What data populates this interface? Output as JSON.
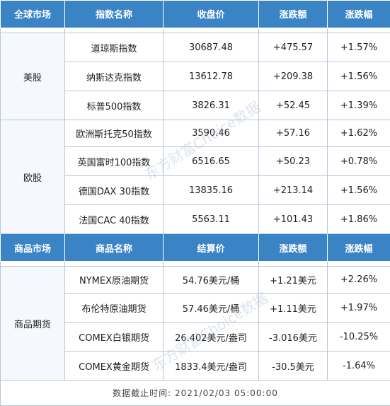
{
  "header1": [
    "全球市场",
    "指数名称",
    "收盘价",
    "涨跌额",
    "涨跌幅"
  ],
  "groups": [
    {
      "market": "美股",
      "rows": [
        [
          "道琼斯指数",
          "30687.48",
          "+475.57",
          "+1.57%"
        ],
        [
          "纳斯达克指数",
          "13612.78",
          "+209.38",
          "+1.56%"
        ],
        [
          "标普500指数",
          "3826.31",
          "+52.45",
          "+1.39%"
        ]
      ]
    },
    {
      "market": "欧股",
      "rows": [
        [
          "欧洲斯托克50指数",
          "3590.46",
          "+57.16",
          "+1.62%"
        ],
        [
          "英国富时100指数",
          "6516.65",
          "+50.23",
          "+0.78%"
        ],
        [
          "德国DAX 30指数",
          "13835.16",
          "+213.14",
          "+1.56%"
        ],
        [
          "法国CAC 40指数",
          "5563.11",
          "+101.43",
          "+1.86%"
        ]
      ]
    }
  ],
  "header2": [
    "商品市场",
    "商品名称",
    "结算价",
    "涨跌额",
    "涨跌幅"
  ],
  "commodity": {
    "market": "商品期货",
    "rows": [
      [
        "NYMEX原油期货",
        "54.76美元/桶",
        "+1.21美元",
        "+2.26%"
      ],
      [
        "布伦特原油期货",
        "57.46美元/桶",
        "+1.11美元",
        "+1.97%"
      ],
      [
        "COMEX白银期货",
        "26.402美元/盎司",
        "-3.016美元",
        "-10.25%"
      ],
      [
        "COMEX黄金期货",
        "1833.4美元/盎司",
        "-30.5美元",
        "-1.64%"
      ]
    ]
  },
  "footer": "数据截止时间: 2021/02/03 05:00:00",
  "watermark": "东方财富Choice数据"
}
